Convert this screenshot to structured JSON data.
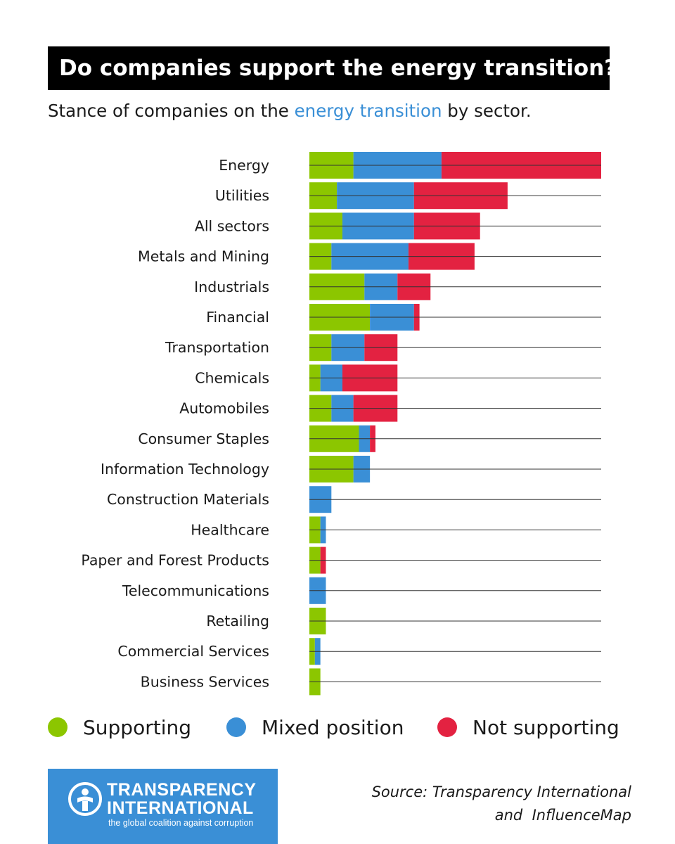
{
  "title": "Do companies support the energy transition?",
  "subtitle": {
    "before": "Stance of companies on the ",
    "highlight": "energy transition",
    "after": " by sector."
  },
  "colors": {
    "supporting": "#8cc600",
    "mixed": "#3a8fd6",
    "not_supporting": "#e32241",
    "highlight": "#3a8fd6",
    "logo_bg": "#3a8fd6"
  },
  "chart_data": {
    "type": "bar",
    "orientation": "horizontal",
    "stacked": true,
    "xlim": [
      0,
      53
    ],
    "grid": false,
    "legend_position": "bottom",
    "categories": [
      "Energy",
      "Utilities",
      "All sectors",
      "Metals and Mining",
      "Industrials",
      "Financial",
      "Transportation",
      "Chemicals",
      "Automobiles",
      "Consumer Staples",
      "Information Technology",
      "Construction Materials",
      "Healthcare",
      "Paper and Forest Products",
      "Telecommunications",
      "Retailing",
      "Commercial Services",
      "Business Services"
    ],
    "series": [
      {
        "name": "Supporting",
        "values": [
          8,
          5,
          6,
          4,
          10,
          11,
          4,
          2,
          4,
          9,
          8,
          0,
          2,
          2,
          0,
          3,
          1,
          2
        ]
      },
      {
        "name": "Mixed position",
        "values": [
          16,
          14,
          13,
          14,
          6,
          8,
          6,
          4,
          4,
          2,
          3,
          4,
          1,
          0,
          3,
          0,
          1,
          0
        ]
      },
      {
        "name": "Not supporting",
        "values": [
          29,
          17,
          12,
          12,
          6,
          1,
          6,
          10,
          8,
          1,
          0,
          0,
          0,
          1,
          0,
          0,
          0,
          0
        ]
      }
    ]
  },
  "legend": [
    {
      "label": "Supporting"
    },
    {
      "label": "Mixed position"
    },
    {
      "label": "Not supporting"
    }
  ],
  "logo": {
    "line1": "TRANSPARENCY",
    "line2": "INTERNATIONAL",
    "tagline": "the global coalition against corruption"
  },
  "source": {
    "line1": "Source: Transparency International",
    "line2": "and  InfluenceMap"
  }
}
